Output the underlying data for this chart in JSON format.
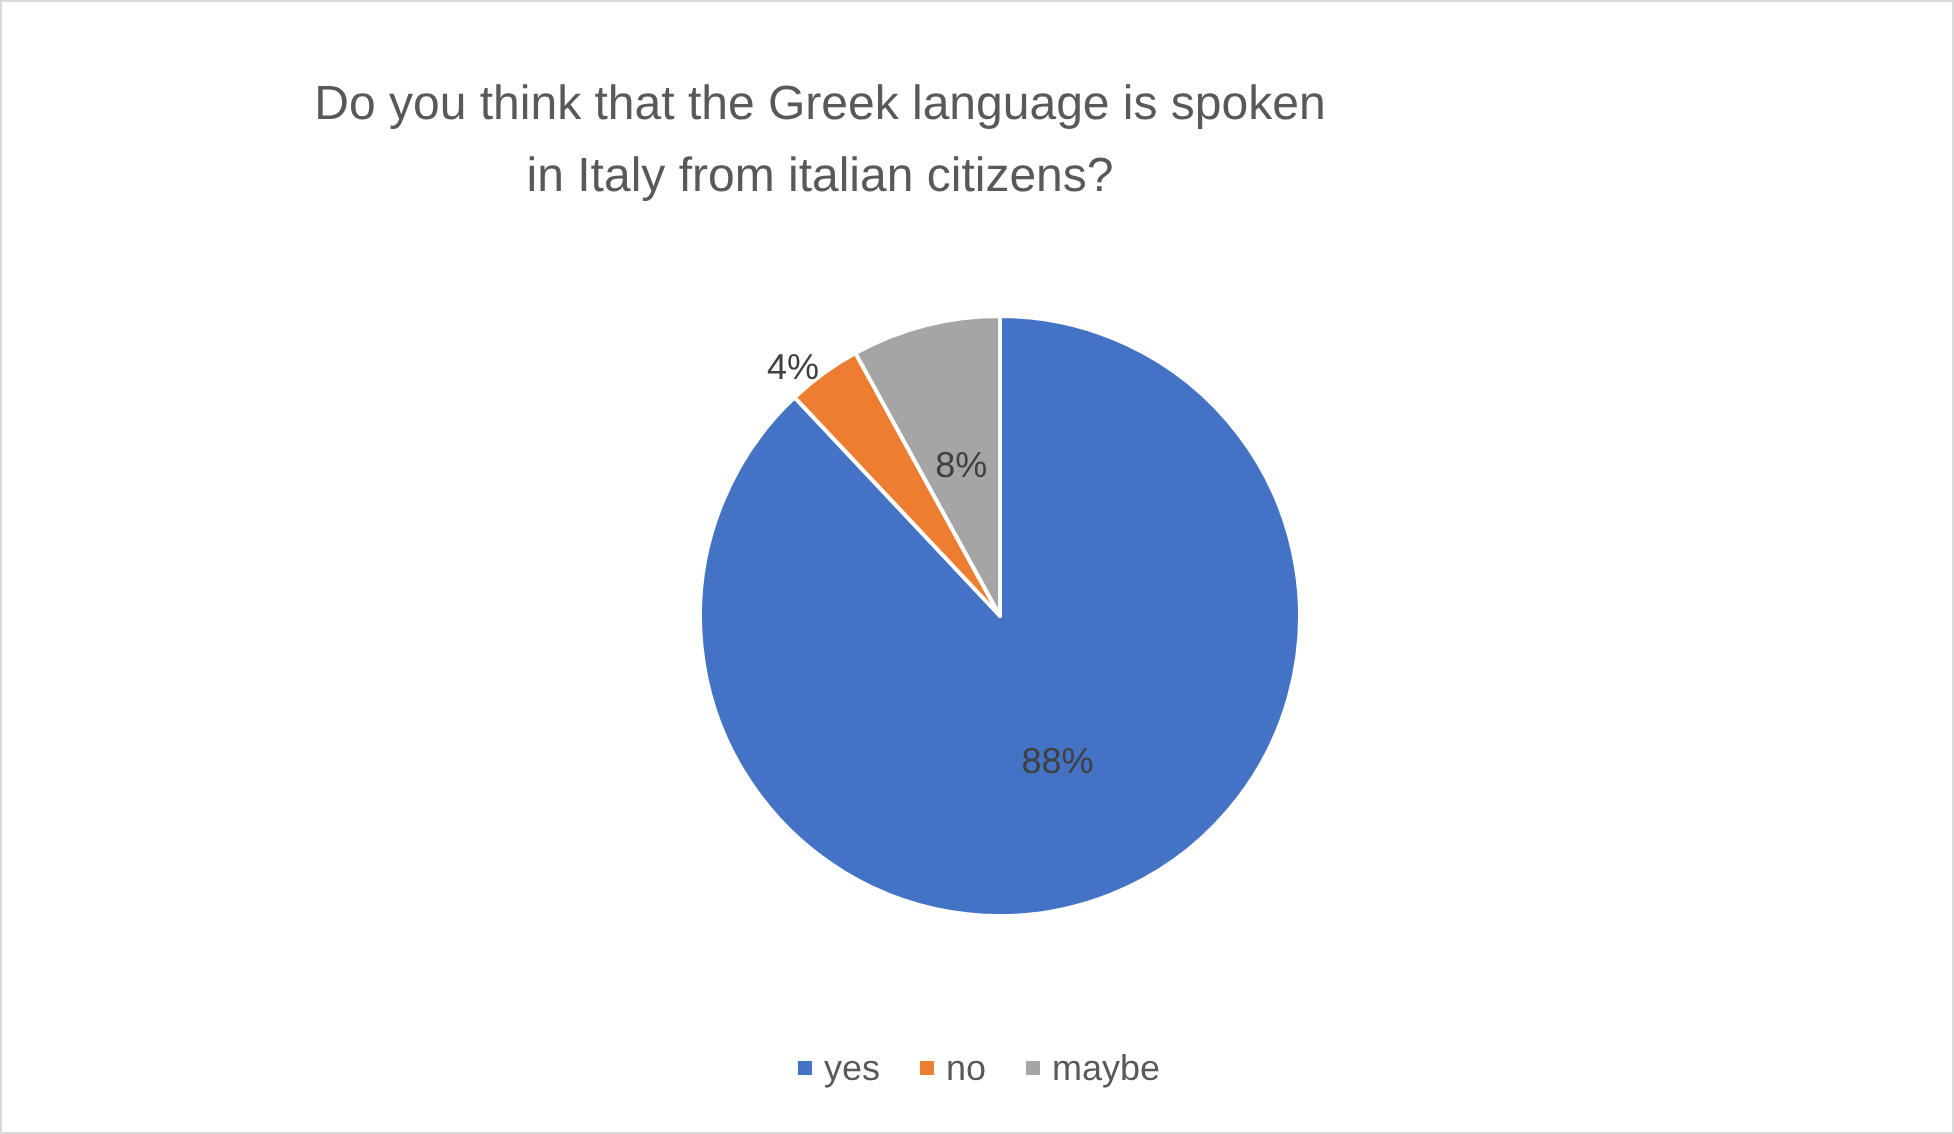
{
  "chart_data": {
    "type": "pie",
    "title": "Do you think that the Greek language is spoken\nin Italy from italian citizens?",
    "categories": [
      "yes",
      "no",
      "maybe"
    ],
    "values": [
      88,
      4,
      8
    ],
    "colors": [
      "#4472c4",
      "#ed7d31",
      "#a5a5a5"
    ],
    "value_labels": [
      "88%",
      "4%",
      "8%"
    ],
    "legend": "bottom"
  }
}
